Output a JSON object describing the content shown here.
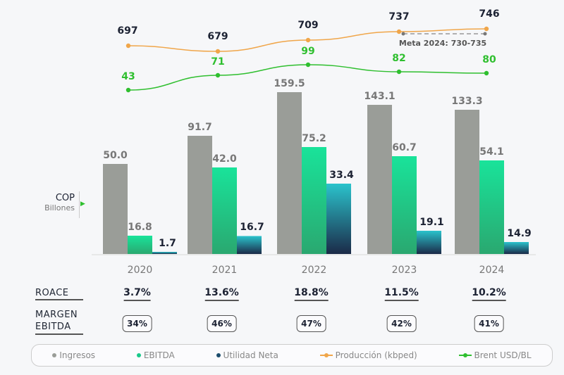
{
  "chart_data": {
    "type": "bar",
    "categories": [
      "2020",
      "2021",
      "2022",
      "2023",
      "2024"
    ],
    "unit_label": {
      "line1": "COP",
      "line2": "Billones"
    },
    "series": [
      {
        "name": "Ingresos",
        "values": [
          50.0,
          91.7,
          159.5,
          143.1,
          133.3
        ],
        "labels": [
          "50.0",
          "91.7",
          "159.5",
          "143.1",
          "133.3"
        ],
        "color": "#9a9d98"
      },
      {
        "name": "EBITDA",
        "values": [
          16.8,
          42.0,
          75.2,
          60.7,
          54.1
        ],
        "labels": [
          "16.8",
          "42.0",
          "75.2",
          "60.7",
          "54.1"
        ],
        "color": "#19e39a"
      },
      {
        "name": "Utilidad Neta",
        "values": [
          1.7,
          16.7,
          33.4,
          19.1,
          14.9
        ],
        "labels": [
          "1.7",
          "16.7",
          "33.4",
          "19.1",
          "14.9"
        ],
        "color": "#1c6d7d"
      }
    ],
    "lines": [
      {
        "name": "Producción (kbped)",
        "values": [
          697,
          679,
          709,
          737,
          746
        ],
        "color": "#f0a64a",
        "label_color": "#1c2233"
      },
      {
        "name": "Brent USD/BL",
        "values": [
          43,
          71,
          99,
          82,
          80
        ],
        "color": "#2fbf2f",
        "label_color": "#2fbf2f"
      }
    ],
    "target": {
      "label": "Meta 2024: 730-735"
    },
    "table": {
      "roace_label": "ROACE",
      "roace": [
        "3.7%",
        "13.6%",
        "18.8%",
        "11.5%",
        "10.2%"
      ],
      "margen_label_1": "MARGEN",
      "margen_label_2": "EBITDA",
      "margen": [
        "34%",
        "46%",
        "47%",
        "42%",
        "41%"
      ]
    },
    "legend": [
      "Ingresos",
      "EBITDA",
      "Utilidad Neta",
      "Producción (kbped)",
      "Brent USD/BL"
    ]
  }
}
